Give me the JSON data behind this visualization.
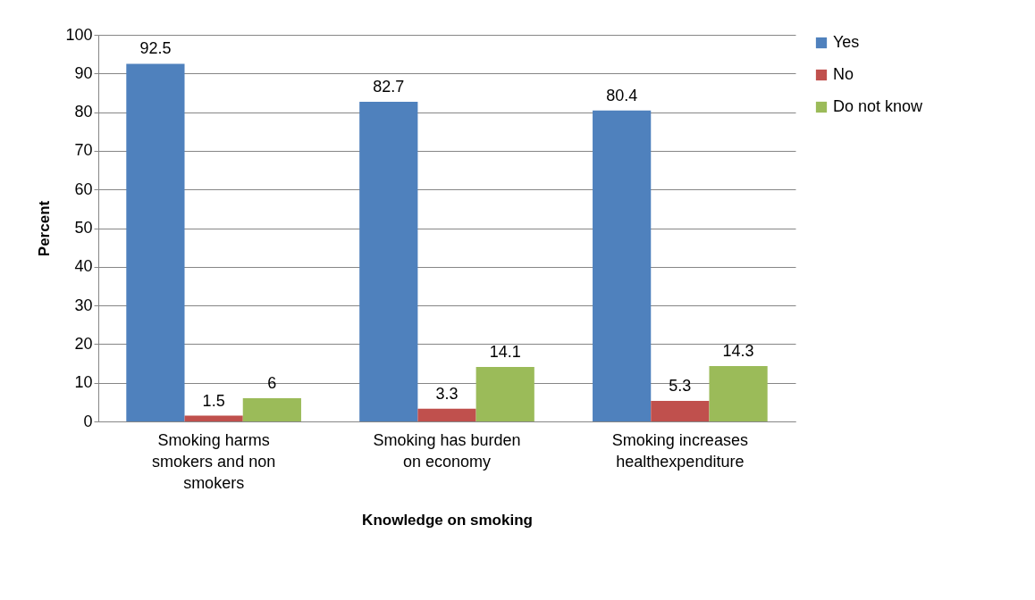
{
  "chart_data": {
    "type": "bar",
    "xlabel": "Knowledge on smoking",
    "ylabel": "Percent",
    "categories": [
      "Smoking harms smokers and non smokers",
      "Smoking has burden on economy",
      "Smoking increases healthexpenditure"
    ],
    "series": [
      {
        "name": "Yes",
        "color": "#4f81bd",
        "values": [
          92.5,
          82.7,
          80.4
        ]
      },
      {
        "name": "No",
        "color": "#c0504d",
        "values": [
          1.5,
          3.3,
          5.3
        ]
      },
      {
        "name": "Do not know",
        "color": "#9bbb59",
        "values": [
          6,
          14.1,
          14.3
        ]
      }
    ],
    "ylim": [
      0,
      100
    ],
    "yticks": [
      0,
      10,
      20,
      30,
      40,
      50,
      60,
      70,
      80,
      90,
      100
    ],
    "grid": "y",
    "legend": "right",
    "data_labels": true
  }
}
